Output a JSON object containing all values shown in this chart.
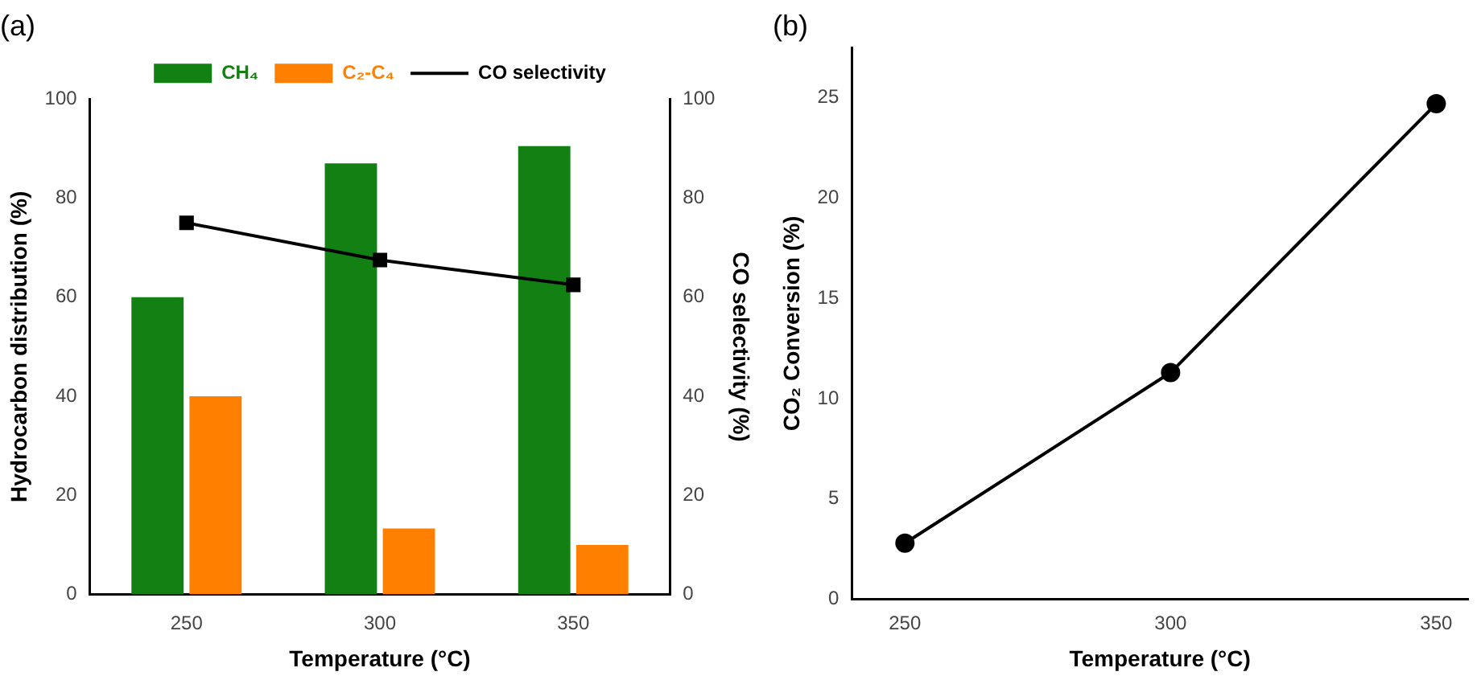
{
  "chart_data": [
    {
      "type": "bar",
      "title": "(a)",
      "xlabel": "Temperature (°C)",
      "ylabel": "Hydrocarbon distribution (%)",
      "y2label": "CO selectivity (%)",
      "categories": [
        "250",
        "300",
        "350"
      ],
      "series": [
        {
          "name": "CH₄",
          "color": "#138013",
          "values": [
            60,
            87,
            90.5
          ]
        },
        {
          "name": "C₂-C₄",
          "color": "#ff8000",
          "values": [
            40,
            13.3,
            10
          ]
        },
        {
          "name": "CO selectivity",
          "type": "line",
          "axis": "y2",
          "color": "#000000",
          "values": [
            75,
            67.5,
            62.5
          ],
          "marker": "square"
        }
      ],
      "ylim": [
        0,
        100
      ],
      "yticks": [
        0,
        20,
        40,
        60,
        80,
        100
      ],
      "y2lim": [
        0,
        100
      ],
      "y2ticks": [
        0,
        20,
        40,
        60,
        80,
        100
      ],
      "legend": "top",
      "grid": false
    },
    {
      "type": "line",
      "title": "(b)",
      "xlabel": "Temperature (°C)",
      "ylabel": "CO₂ Conversion (%)",
      "x": [
        250,
        300,
        350
      ],
      "values": [
        2.8,
        11.3,
        24.7
      ],
      "color": "#000000",
      "marker": "circle",
      "xlim": [
        240,
        356
      ],
      "xticks": [
        250,
        300,
        350
      ],
      "ylim": [
        0,
        27.5
      ],
      "yticks": [
        0,
        5,
        10,
        15,
        20,
        25
      ],
      "grid": false
    }
  ]
}
